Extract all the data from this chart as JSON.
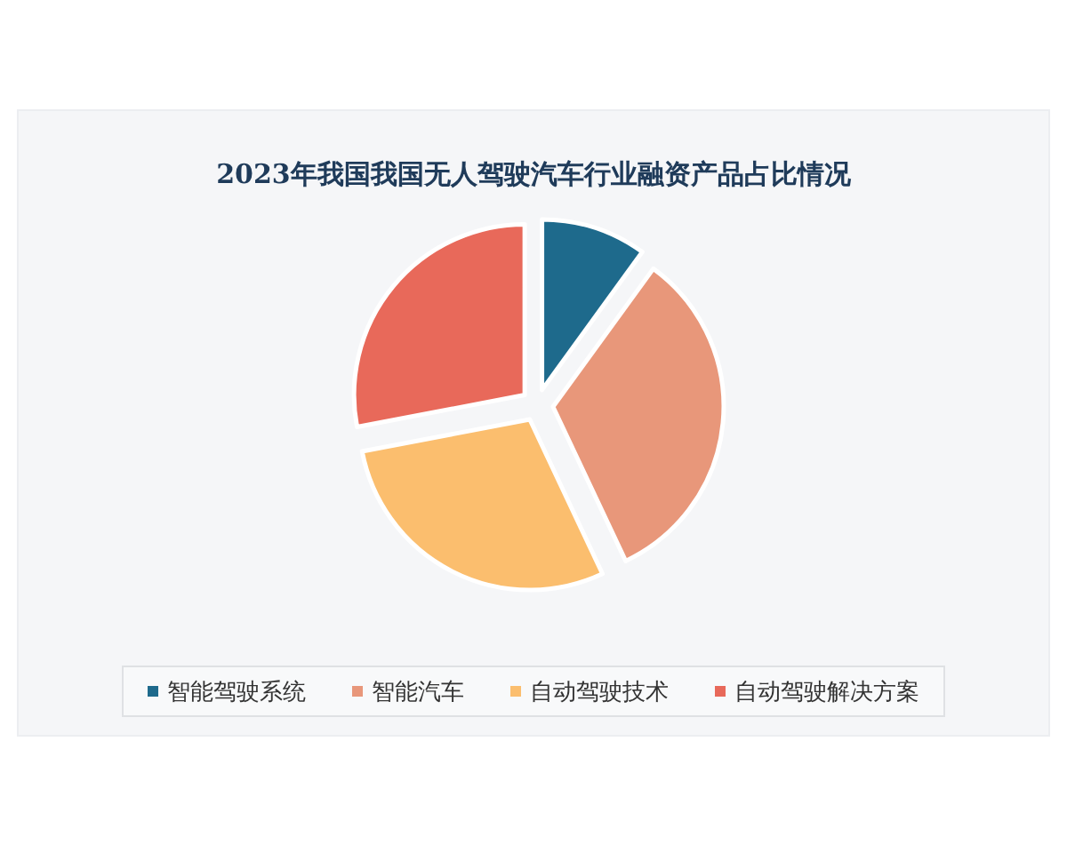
{
  "chart_data": {
    "type": "pie",
    "title": "2023年我国我国无人驾驶汽车行业融资产品占比情况",
    "categories": [
      "智能驾驶系统",
      "智能汽车",
      "自动驾驶技术",
      "自动驾驶解决方案"
    ],
    "values": [
      10,
      33,
      29,
      28
    ],
    "colors": [
      "#1e6a8c",
      "#e8977a",
      "#fbbe6e",
      "#e8695a"
    ],
    "legend": "bottom"
  }
}
